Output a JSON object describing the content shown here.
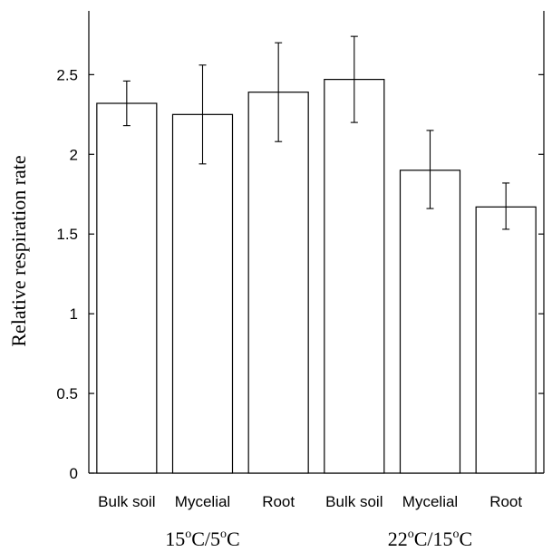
{
  "chart_data": {
    "type": "bar",
    "categories": [
      "Bulk soil",
      "Mycelial",
      "Root",
      "Bulk soil",
      "Mycelial",
      "Root"
    ],
    "values": [
      2.32,
      2.25,
      2.39,
      2.47,
      1.9,
      1.67
    ],
    "error_bars": [
      [
        2.18,
        2.46
      ],
      [
        1.94,
        2.56
      ],
      [
        2.08,
        2.7
      ],
      [
        2.2,
        2.74
      ],
      [
        1.66,
        2.15
      ],
      [
        1.53,
        1.82
      ]
    ],
    "groups": [
      {
        "label": "15",
        "mid": "C/5",
        "end": "C",
        "categories": [
          0,
          1,
          2
        ]
      },
      {
        "label": "22",
        "mid": "C/15",
        "end": "C",
        "categories": [
          3,
          4,
          5
        ]
      }
    ],
    "degree_symbol": "o",
    "ylabel": "Relative respiration rate",
    "ylim": [
      0,
      2.9
    ],
    "yticks": [
      0,
      0.5,
      1,
      1.5,
      2,
      2.5
    ],
    "ytick_labels": [
      "0",
      "0.5",
      "1",
      "1.5",
      "2",
      "2.5"
    ],
    "grid": false,
    "bar_fill": "#ffffff",
    "bar_stroke": "#000000"
  }
}
